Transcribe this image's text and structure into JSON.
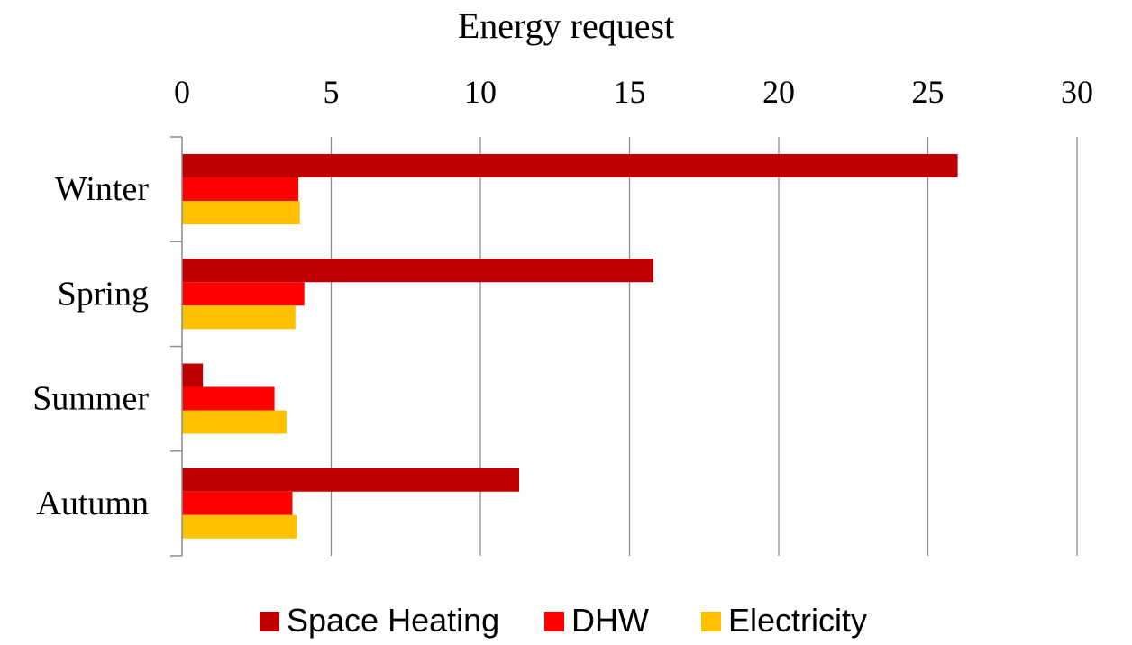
{
  "chart_data": {
    "type": "bar",
    "orientation": "horizontal",
    "title": "Energy request",
    "xlabel": "",
    "ylabel": "",
    "categories": [
      "Winter",
      "Spring",
      "Summer",
      "Autumn"
    ],
    "xlim": [
      0,
      30
    ],
    "x_ticks": [
      0,
      5,
      10,
      15,
      20,
      25,
      30
    ],
    "x_axis_position": "top",
    "grid": true,
    "legend_position": "bottom",
    "series": [
      {
        "name": "Space Heating",
        "color": "#C00000",
        "values": [
          26.0,
          15.8,
          0.7,
          11.3
        ]
      },
      {
        "name": "DHW",
        "color": "#FF0000",
        "values": [
          3.9,
          4.1,
          3.1,
          3.7
        ]
      },
      {
        "name": "Electricity",
        "color": "#FFC000",
        "values": [
          3.95,
          3.8,
          3.5,
          3.85
        ]
      }
    ]
  }
}
